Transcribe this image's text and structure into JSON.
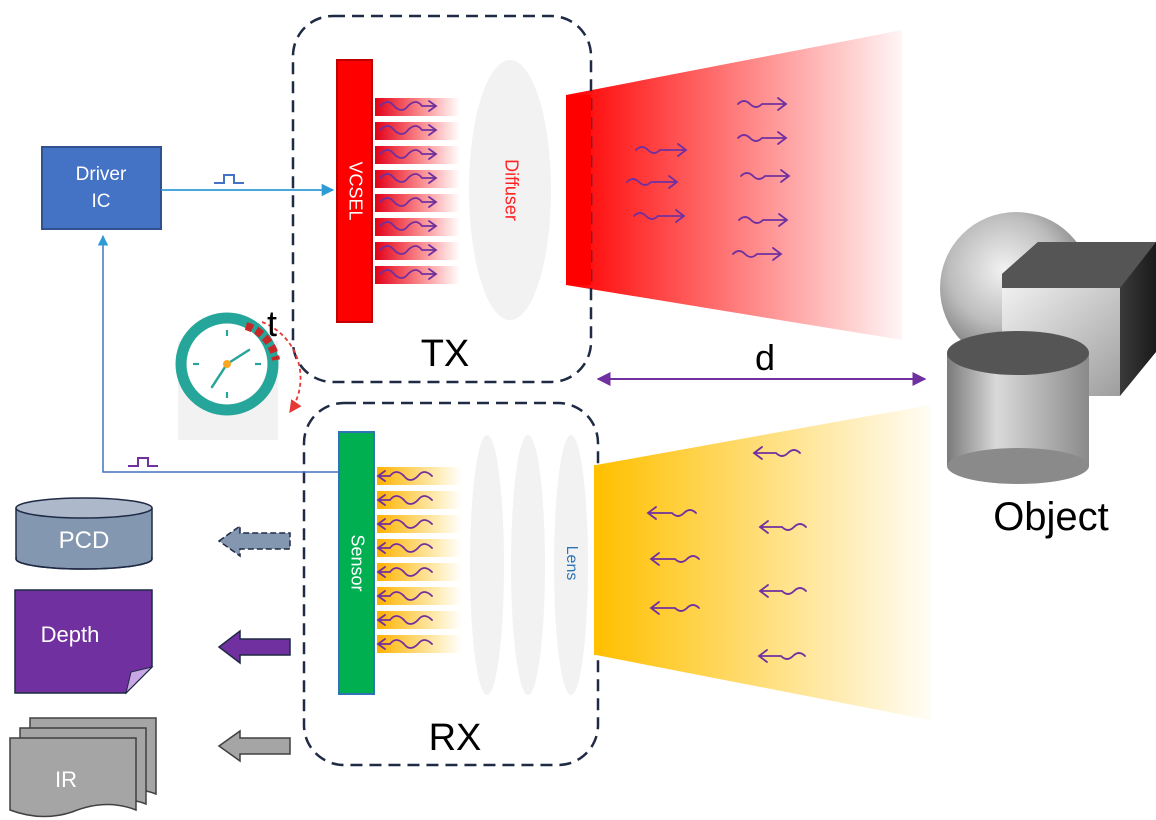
{
  "labels": {
    "driver_line1": "Driver",
    "driver_line2": "IC",
    "vcsel": "VCSEL",
    "diffuser": "Diffuser",
    "tx": "TX",
    "rx": "RX",
    "sensor": "Sensor",
    "lens": "Lens",
    "time": "t",
    "distance": "d",
    "object": "Object",
    "pcd": "PCD",
    "depth": "Depth",
    "ir": "IR"
  },
  "colors": {
    "driver_fill": "#4472c4",
    "driver_stroke": "#2f528f",
    "vcsel": "#ff0000",
    "vcsel_stroke": "#c00000",
    "sensor": "#00b050",
    "sensor_stroke": "#2e75b6",
    "tx_beam": "#ff0000",
    "rx_beam": "#ffc000",
    "photon": "#7030a0",
    "signal_line": "#00b0f0",
    "feedback_line": "#4472c4",
    "distance_arrow": "#7030a0",
    "pcd": "#8497b0",
    "depth": "#7030a0",
    "ir": "#a5a5a5",
    "dashed_box": "#1f2a44",
    "clock_ring": "#26a69a",
    "timer_arc": "#e53935"
  },
  "icons": {
    "clock": "stopwatch-icon",
    "pulse": "square-pulse-icon",
    "object": "3d-shapes-icon",
    "pcd": "database-cylinder-icon",
    "depth": "document-icon",
    "ir": "stacked-pages-icon"
  }
}
